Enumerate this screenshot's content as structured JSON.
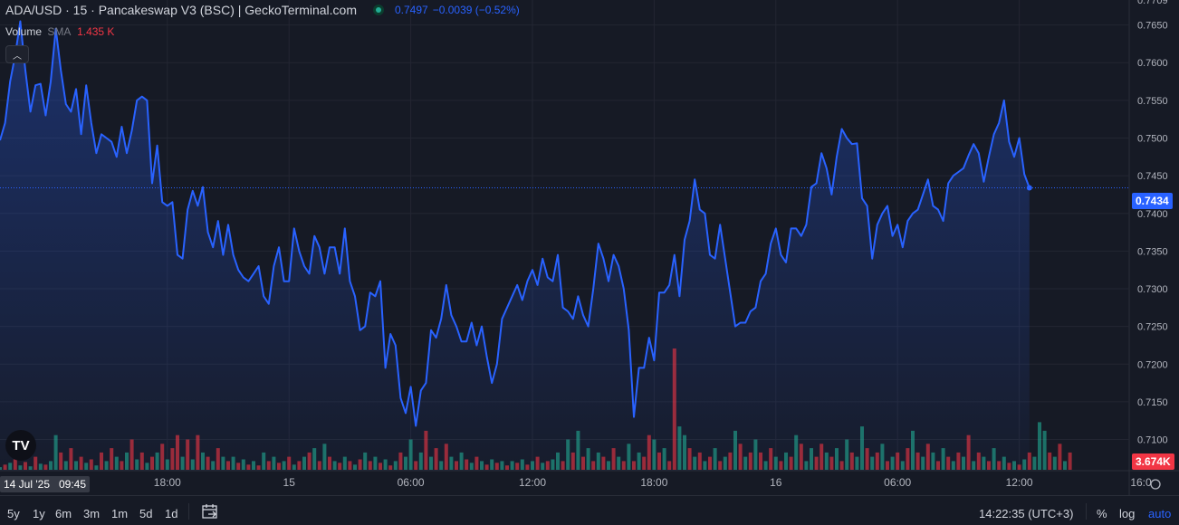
{
  "header": {
    "symbol_line": "ADA/USD · 15 · Pancakeswap V3 (BSC) | GeckoTerminal.com",
    "price": "0.7497",
    "change": "−0.0039 (−0.52%)"
  },
  "volume_legend": {
    "label": "Volume",
    "sma": "SMA",
    "value": "1.435 K"
  },
  "badges": {
    "last_price": "0.7434",
    "volume": "3.674K",
    "time": "14 Jul '25   09:45"
  },
  "colors": {
    "line": "#2962ff",
    "up": "#22ab94",
    "down": "#f23645",
    "background": "#161a25",
    "grid": "#232632"
  },
  "toolbar": {
    "timeframes": [
      "5y",
      "1y",
      "6m",
      "3m",
      "1m",
      "5d",
      "1d"
    ],
    "clock": "14:22:35 (UTC+3)",
    "percent": "%",
    "log": "log",
    "auto": "auto"
  },
  "chart_data": {
    "type": "line",
    "series": [
      {
        "values": [
          0.7497,
          0.752,
          0.7575,
          0.761,
          0.7655,
          0.759,
          0.7535,
          0.757,
          0.7572,
          0.753,
          0.7575,
          0.7645,
          0.759,
          0.7545,
          0.7535,
          0.7565,
          0.7505,
          0.757,
          0.752,
          0.748,
          0.7505,
          0.75,
          0.7495,
          0.7475,
          0.7515,
          0.748,
          0.751,
          0.755,
          0.7555,
          0.755,
          0.744,
          0.749,
          0.7415,
          0.741,
          0.7415,
          0.7345,
          0.734,
          0.7405,
          0.743,
          0.741,
          0.7435,
          0.7375,
          0.7355,
          0.739,
          0.7345,
          0.7385,
          0.7345,
          0.7325,
          0.7315,
          0.731,
          0.732,
          0.733,
          0.729,
          0.728,
          0.733,
          0.7355,
          0.731,
          0.731,
          0.738,
          0.735,
          0.733,
          0.732,
          0.737,
          0.7355,
          0.732,
          0.7355,
          0.7355,
          0.732,
          0.738,
          0.731,
          0.729,
          0.7245,
          0.725,
          0.7295,
          0.729,
          0.731,
          0.7195,
          0.724,
          0.7225,
          0.7155,
          0.7135,
          0.717,
          0.7118,
          0.7165,
          0.7175,
          0.7245,
          0.7235,
          0.726,
          0.7305,
          0.7265,
          0.725,
          0.723,
          0.723,
          0.7255,
          0.7225,
          0.725,
          0.721,
          0.7175,
          0.72,
          0.726,
          0.7275,
          0.729,
          0.7305,
          0.7285,
          0.731,
          0.7325,
          0.7305,
          0.734,
          0.7315,
          0.731,
          0.7345,
          0.7275,
          0.727,
          0.726,
          0.729,
          0.7265,
          0.725,
          0.73,
          0.736,
          0.734,
          0.731,
          0.7345,
          0.733,
          0.73,
          0.7245,
          0.713,
          0.7195,
          0.7195,
          0.7235,
          0.7205,
          0.7295,
          0.7295,
          0.7305,
          0.7345,
          0.729,
          0.7365,
          0.739,
          0.7445,
          0.7405,
          0.74,
          0.7345,
          0.734,
          0.7385,
          0.734,
          0.7295,
          0.725,
          0.7255,
          0.7255,
          0.727,
          0.7275,
          0.731,
          0.732,
          0.736,
          0.738,
          0.7345,
          0.7335,
          0.738,
          0.738,
          0.737,
          0.7385,
          0.7435,
          0.744,
          0.748,
          0.746,
          0.7425,
          0.7475,
          0.7512,
          0.75,
          0.7492,
          0.7493,
          0.742,
          0.741,
          0.734,
          0.7385,
          0.74,
          0.741,
          0.737,
          0.7385,
          0.7355,
          0.739,
          0.74,
          0.7405,
          0.7425,
          0.7445,
          0.741,
          0.7405,
          0.739,
          0.744,
          0.745,
          0.7455,
          0.746,
          0.7477,
          0.7492,
          0.748,
          0.7442,
          0.7475,
          0.7505,
          0.752,
          0.755,
          0.7495,
          0.7475,
          0.75,
          0.7452,
          0.7434
        ]
      }
    ],
    "volume": [
      {
        "v": 0.3,
        "d": "up"
      },
      {
        "v": 0.6,
        "d": "down"
      },
      {
        "v": 0.8,
        "d": "up"
      },
      {
        "v": 1.2,
        "d": "down"
      },
      {
        "v": 0.5,
        "d": "up"
      },
      {
        "v": 0.9,
        "d": "down"
      },
      {
        "v": 0.4,
        "d": "up"
      },
      {
        "v": 1.5,
        "d": "down"
      },
      {
        "v": 0.7,
        "d": "up"
      },
      {
        "v": 0.6,
        "d": "down"
      },
      {
        "v": 1.0,
        "d": "up"
      },
      {
        "v": 4.0,
        "d": "up"
      },
      {
        "v": 2.0,
        "d": "down"
      },
      {
        "v": 1.0,
        "d": "up"
      },
      {
        "v": 2.5,
        "d": "down"
      },
      {
        "v": 1.0,
        "d": "up"
      },
      {
        "v": 1.5,
        "d": "down"
      },
      {
        "v": 0.8,
        "d": "up"
      },
      {
        "v": 1.2,
        "d": "down"
      },
      {
        "v": 0.5,
        "d": "up"
      },
      {
        "v": 2.0,
        "d": "down"
      },
      {
        "v": 1.0,
        "d": "up"
      },
      {
        "v": 2.5,
        "d": "down"
      },
      {
        "v": 1.5,
        "d": "up"
      },
      {
        "v": 1.0,
        "d": "down"
      },
      {
        "v": 2.0,
        "d": "up"
      },
      {
        "v": 3.5,
        "d": "down"
      },
      {
        "v": 1.2,
        "d": "up"
      },
      {
        "v": 2.0,
        "d": "down"
      },
      {
        "v": 0.8,
        "d": "up"
      },
      {
        "v": 1.5,
        "d": "down"
      },
      {
        "v": 2.0,
        "d": "up"
      },
      {
        "v": 3.0,
        "d": "down"
      },
      {
        "v": 1.2,
        "d": "up"
      },
      {
        "v": 2.5,
        "d": "down"
      },
      {
        "v": 4.0,
        "d": "down"
      },
      {
        "v": 1.5,
        "d": "up"
      },
      {
        "v": 3.5,
        "d": "down"
      },
      {
        "v": 1.2,
        "d": "up"
      },
      {
        "v": 4.0,
        "d": "down"
      },
      {
        "v": 2.0,
        "d": "up"
      },
      {
        "v": 1.5,
        "d": "down"
      },
      {
        "v": 1.0,
        "d": "up"
      },
      {
        "v": 2.5,
        "d": "down"
      },
      {
        "v": 1.5,
        "d": "up"
      },
      {
        "v": 1.0,
        "d": "down"
      },
      {
        "v": 1.5,
        "d": "up"
      },
      {
        "v": 0.8,
        "d": "down"
      },
      {
        "v": 1.2,
        "d": "up"
      },
      {
        "v": 0.6,
        "d": "down"
      },
      {
        "v": 1.0,
        "d": "up"
      },
      {
        "v": 0.5,
        "d": "down"
      },
      {
        "v": 2.0,
        "d": "up"
      },
      {
        "v": 1.0,
        "d": "down"
      },
      {
        "v": 1.5,
        "d": "up"
      },
      {
        "v": 0.8,
        "d": "down"
      },
      {
        "v": 1.0,
        "d": "up"
      },
      {
        "v": 1.5,
        "d": "down"
      },
      {
        "v": 0.6,
        "d": "up"
      },
      {
        "v": 1.0,
        "d": "down"
      },
      {
        "v": 1.5,
        "d": "up"
      },
      {
        "v": 2.0,
        "d": "down"
      },
      {
        "v": 2.5,
        "d": "up"
      },
      {
        "v": 1.0,
        "d": "down"
      },
      {
        "v": 3.0,
        "d": "up"
      },
      {
        "v": 1.5,
        "d": "down"
      },
      {
        "v": 1.0,
        "d": "up"
      },
      {
        "v": 0.8,
        "d": "down"
      },
      {
        "v": 1.5,
        "d": "up"
      },
      {
        "v": 1.0,
        "d": "down"
      },
      {
        "v": 0.6,
        "d": "up"
      },
      {
        "v": 1.2,
        "d": "down"
      },
      {
        "v": 2.0,
        "d": "up"
      },
      {
        "v": 1.0,
        "d": "down"
      },
      {
        "v": 1.5,
        "d": "up"
      },
      {
        "v": 0.8,
        "d": "down"
      },
      {
        "v": 1.2,
        "d": "up"
      },
      {
        "v": 0.5,
        "d": "down"
      },
      {
        "v": 1.0,
        "d": "up"
      },
      {
        "v": 2.0,
        "d": "down"
      },
      {
        "v": 1.5,
        "d": "up"
      },
      {
        "v": 3.5,
        "d": "up"
      },
      {
        "v": 1.0,
        "d": "down"
      },
      {
        "v": 2.0,
        "d": "up"
      },
      {
        "v": 4.5,
        "d": "down"
      },
      {
        "v": 1.5,
        "d": "up"
      },
      {
        "v": 2.5,
        "d": "down"
      },
      {
        "v": 1.0,
        "d": "up"
      },
      {
        "v": 3.0,
        "d": "down"
      },
      {
        "v": 1.5,
        "d": "up"
      },
      {
        "v": 1.0,
        "d": "down"
      },
      {
        "v": 2.0,
        "d": "up"
      },
      {
        "v": 1.2,
        "d": "down"
      },
      {
        "v": 0.8,
        "d": "up"
      },
      {
        "v": 1.5,
        "d": "down"
      },
      {
        "v": 1.0,
        "d": "up"
      },
      {
        "v": 0.6,
        "d": "down"
      },
      {
        "v": 1.2,
        "d": "up"
      },
      {
        "v": 0.8,
        "d": "down"
      },
      {
        "v": 1.0,
        "d": "up"
      },
      {
        "v": 0.5,
        "d": "down"
      },
      {
        "v": 1.0,
        "d": "up"
      },
      {
        "v": 0.8,
        "d": "down"
      },
      {
        "v": 1.2,
        "d": "up"
      },
      {
        "v": 0.6,
        "d": "down"
      },
      {
        "v": 1.0,
        "d": "up"
      },
      {
        "v": 1.5,
        "d": "down"
      },
      {
        "v": 0.8,
        "d": "up"
      },
      {
        "v": 1.0,
        "d": "down"
      },
      {
        "v": 1.2,
        "d": "up"
      },
      {
        "v": 2.0,
        "d": "up"
      },
      {
        "v": 1.0,
        "d": "down"
      },
      {
        "v": 3.5,
        "d": "up"
      },
      {
        "v": 2.0,
        "d": "down"
      },
      {
        "v": 4.5,
        "d": "up"
      },
      {
        "v": 1.5,
        "d": "down"
      },
      {
        "v": 2.5,
        "d": "up"
      },
      {
        "v": 1.0,
        "d": "down"
      },
      {
        "v": 2.0,
        "d": "up"
      },
      {
        "v": 1.5,
        "d": "down"
      },
      {
        "v": 1.0,
        "d": "up"
      },
      {
        "v": 2.5,
        "d": "down"
      },
      {
        "v": 1.5,
        "d": "up"
      },
      {
        "v": 1.0,
        "d": "down"
      },
      {
        "v": 3.0,
        "d": "up"
      },
      {
        "v": 1.0,
        "d": "down"
      },
      {
        "v": 2.0,
        "d": "up"
      },
      {
        "v": 1.5,
        "d": "down"
      },
      {
        "v": 4.0,
        "d": "down"
      },
      {
        "v": 3.5,
        "d": "up"
      },
      {
        "v": 2.0,
        "d": "down"
      },
      {
        "v": 2.5,
        "d": "up"
      },
      {
        "v": 1.0,
        "d": "down"
      },
      {
        "v": 14.0,
        "d": "down"
      },
      {
        "v": 5.0,
        "d": "up"
      },
      {
        "v": 4.0,
        "d": "up"
      },
      {
        "v": 2.5,
        "d": "down"
      },
      {
        "v": 1.5,
        "d": "up"
      },
      {
        "v": 2.0,
        "d": "down"
      },
      {
        "v": 1.0,
        "d": "up"
      },
      {
        "v": 1.5,
        "d": "down"
      },
      {
        "v": 2.5,
        "d": "up"
      },
      {
        "v": 1.0,
        "d": "down"
      },
      {
        "v": 1.5,
        "d": "up"
      },
      {
        "v": 2.0,
        "d": "down"
      },
      {
        "v": 4.5,
        "d": "up"
      },
      {
        "v": 3.0,
        "d": "down"
      },
      {
        "v": 1.5,
        "d": "up"
      },
      {
        "v": 2.0,
        "d": "down"
      },
      {
        "v": 3.5,
        "d": "up"
      },
      {
        "v": 2.0,
        "d": "down"
      },
      {
        "v": 1.0,
        "d": "up"
      },
      {
        "v": 2.5,
        "d": "down"
      },
      {
        "v": 1.5,
        "d": "up"
      },
      {
        "v": 1.0,
        "d": "down"
      },
      {
        "v": 2.0,
        "d": "up"
      },
      {
        "v": 1.5,
        "d": "down"
      },
      {
        "v": 4.0,
        "d": "up"
      },
      {
        "v": 3.0,
        "d": "down"
      },
      {
        "v": 1.0,
        "d": "up"
      },
      {
        "v": 2.5,
        "d": "up"
      },
      {
        "v": 1.5,
        "d": "down"
      },
      {
        "v": 3.0,
        "d": "down"
      },
      {
        "v": 2.0,
        "d": "up"
      },
      {
        "v": 1.5,
        "d": "down"
      },
      {
        "v": 2.5,
        "d": "up"
      },
      {
        "v": 1.0,
        "d": "down"
      },
      {
        "v": 3.5,
        "d": "up"
      },
      {
        "v": 2.0,
        "d": "down"
      },
      {
        "v": 1.5,
        "d": "up"
      },
      {
        "v": 5.0,
        "d": "up"
      },
      {
        "v": 2.5,
        "d": "down"
      },
      {
        "v": 1.5,
        "d": "up"
      },
      {
        "v": 2.0,
        "d": "down"
      },
      {
        "v": 3.0,
        "d": "up"
      },
      {
        "v": 1.0,
        "d": "down"
      },
      {
        "v": 1.5,
        "d": "up"
      },
      {
        "v": 2.0,
        "d": "down"
      },
      {
        "v": 1.0,
        "d": "up"
      },
      {
        "v": 2.5,
        "d": "down"
      },
      {
        "v": 4.5,
        "d": "up"
      },
      {
        "v": 2.0,
        "d": "down"
      },
      {
        "v": 1.5,
        "d": "up"
      },
      {
        "v": 3.0,
        "d": "down"
      },
      {
        "v": 2.0,
        "d": "up"
      },
      {
        "v": 1.0,
        "d": "down"
      },
      {
        "v": 2.5,
        "d": "up"
      },
      {
        "v": 1.5,
        "d": "down"
      },
      {
        "v": 1.0,
        "d": "up"
      },
      {
        "v": 2.0,
        "d": "down"
      },
      {
        "v": 1.5,
        "d": "up"
      },
      {
        "v": 4.0,
        "d": "down"
      },
      {
        "v": 1.0,
        "d": "up"
      },
      {
        "v": 2.0,
        "d": "down"
      },
      {
        "v": 1.5,
        "d": "up"
      },
      {
        "v": 1.0,
        "d": "down"
      },
      {
        "v": 2.5,
        "d": "up"
      },
      {
        "v": 1.0,
        "d": "down"
      },
      {
        "v": 1.5,
        "d": "up"
      },
      {
        "v": 0.8,
        "d": "down"
      },
      {
        "v": 1.0,
        "d": "up"
      },
      {
        "v": 0.6,
        "d": "down"
      },
      {
        "v": 1.2,
        "d": "up"
      },
      {
        "v": 2.0,
        "d": "down"
      },
      {
        "v": 1.5,
        "d": "up"
      },
      {
        "v": 5.5,
        "d": "up"
      },
      {
        "v": 4.5,
        "d": "up"
      },
      {
        "v": 2.0,
        "d": "down"
      },
      {
        "v": 1.5,
        "d": "up"
      },
      {
        "v": 3.0,
        "d": "down"
      },
      {
        "v": 1.0,
        "d": "up"
      },
      {
        "v": 2.0,
        "d": "down"
      }
    ],
    "y_ticks": [
      "0.7650",
      "0.7600",
      "0.7550",
      "0.7500",
      "0.7450",
      "0.7400",
      "0.7350",
      "0.7300",
      "0.7250",
      "0.7200",
      "0.7150",
      "0.7100"
    ],
    "y_tick_values": [
      0.765,
      0.76,
      0.755,
      0.75,
      0.745,
      0.74,
      0.735,
      0.73,
      0.725,
      0.72,
      0.715,
      0.71
    ],
    "y_top_partial": "0.7709",
    "x_ticks": [
      {
        "label": "18:00",
        "i": 33
      },
      {
        "label": "15",
        "i": 57
      },
      {
        "label": "06:00",
        "i": 81
      },
      {
        "label": "12:00",
        "i": 105
      },
      {
        "label": "18:00",
        "i": 129
      },
      {
        "label": "16",
        "i": 153
      },
      {
        "label": "06:00",
        "i": 177
      },
      {
        "label": "12:00",
        "i": 201
      },
      {
        "label": "16:0",
        "i": 225
      }
    ],
    "ylim": [
      0.7055,
      0.7712
    ],
    "last_value": 0.7434,
    "grid": true
  }
}
